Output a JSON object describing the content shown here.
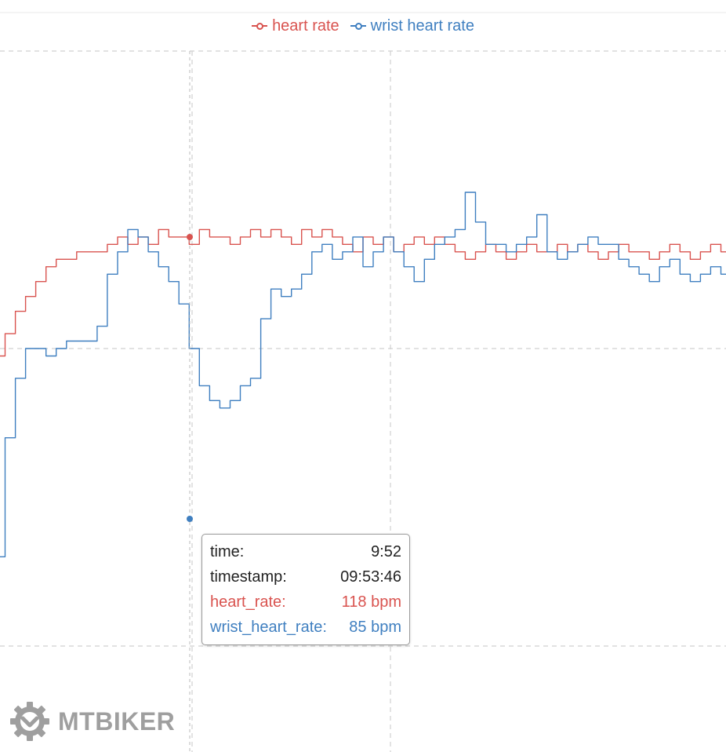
{
  "chart_data": {
    "type": "line",
    "title": "",
    "xlabel": "",
    "ylabel": "",
    "grid": true,
    "legend_position": "top-center",
    "series": [
      {
        "name": "heart rate",
        "color": "#d9534f",
        "points": [
          [
            0,
            99
          ],
          [
            3,
            102
          ],
          [
            6,
            105
          ],
          [
            9,
            107
          ],
          [
            12,
            109
          ],
          [
            15,
            111
          ],
          [
            18,
            112
          ],
          [
            21,
            112
          ],
          [
            24,
            113
          ],
          [
            27,
            113
          ],
          [
            30,
            113
          ],
          [
            33,
            114
          ],
          [
            36,
            115
          ],
          [
            39,
            114
          ],
          [
            42,
            115
          ],
          [
            45,
            114
          ],
          [
            48,
            116
          ],
          [
            51,
            115
          ],
          [
            54,
            115
          ],
          [
            57,
            114
          ],
          [
            60,
            116
          ],
          [
            63,
            115
          ],
          [
            66,
            115
          ],
          [
            69,
            114
          ],
          [
            72,
            115
          ],
          [
            75,
            116
          ],
          [
            78,
            115
          ],
          [
            81,
            116
          ],
          [
            84,
            115
          ],
          [
            87,
            114
          ],
          [
            90,
            116
          ],
          [
            93,
            115
          ],
          [
            96,
            116
          ],
          [
            99,
            115
          ],
          [
            102,
            114
          ],
          [
            105,
            113
          ],
          [
            108,
            115
          ],
          [
            111,
            114
          ],
          [
            114,
            115
          ],
          [
            117,
            113
          ],
          [
            120,
            114
          ],
          [
            123,
            115
          ],
          [
            126,
            114
          ],
          [
            129,
            115
          ],
          [
            132,
            114
          ],
          [
            135,
            113
          ],
          [
            138,
            112
          ],
          [
            141,
            113
          ],
          [
            144,
            114
          ],
          [
            147,
            113
          ],
          [
            150,
            112
          ],
          [
            153,
            113
          ],
          [
            156,
            114
          ],
          [
            159,
            113
          ],
          [
            162,
            113
          ],
          [
            165,
            114
          ],
          [
            168,
            113
          ],
          [
            171,
            114
          ],
          [
            174,
            113
          ],
          [
            177,
            112
          ],
          [
            180,
            113
          ],
          [
            183,
            114
          ],
          [
            186,
            113
          ],
          [
            189,
            113
          ],
          [
            192,
            112
          ],
          [
            195,
            113
          ],
          [
            198,
            114
          ],
          [
            201,
            113
          ],
          [
            204,
            112
          ],
          [
            207,
            113
          ],
          [
            210,
            114
          ],
          [
            213,
            113
          ]
        ]
      },
      {
        "name": "wrist heart rate",
        "color": "#3f7fc0",
        "points": [
          [
            0,
            72
          ],
          [
            3,
            88
          ],
          [
            6,
            96
          ],
          [
            9,
            100
          ],
          [
            12,
            100
          ],
          [
            15,
            99
          ],
          [
            18,
            100
          ],
          [
            21,
            101
          ],
          [
            24,
            101
          ],
          [
            27,
            101
          ],
          [
            30,
            103
          ],
          [
            33,
            110
          ],
          [
            36,
            113
          ],
          [
            39,
            116
          ],
          [
            42,
            115
          ],
          [
            45,
            113
          ],
          [
            48,
            111
          ],
          [
            51,
            109
          ],
          [
            54,
            106
          ],
          [
            57,
            100
          ],
          [
            60,
            95
          ],
          [
            63,
            93
          ],
          [
            66,
            92
          ],
          [
            69,
            93
          ],
          [
            72,
            95
          ],
          [
            75,
            96
          ],
          [
            78,
            104
          ],
          [
            81,
            108
          ],
          [
            84,
            107
          ],
          [
            87,
            108
          ],
          [
            90,
            110
          ],
          [
            93,
            113
          ],
          [
            96,
            114
          ],
          [
            99,
            112
          ],
          [
            102,
            113
          ],
          [
            105,
            115
          ],
          [
            108,
            111
          ],
          [
            111,
            113
          ],
          [
            114,
            115
          ],
          [
            117,
            113
          ],
          [
            120,
            111
          ],
          [
            123,
            109
          ],
          [
            126,
            112
          ],
          [
            129,
            114
          ],
          [
            132,
            115
          ],
          [
            135,
            116
          ],
          [
            138,
            121
          ],
          [
            141,
            117
          ],
          [
            144,
            114
          ],
          [
            147,
            114
          ],
          [
            150,
            113
          ],
          [
            153,
            114
          ],
          [
            156,
            115
          ],
          [
            159,
            118
          ],
          [
            162,
            113
          ],
          [
            165,
            112
          ],
          [
            168,
            113
          ],
          [
            171,
            114
          ],
          [
            174,
            115
          ],
          [
            177,
            114
          ],
          [
            180,
            114
          ],
          [
            183,
            112
          ],
          [
            186,
            111
          ],
          [
            189,
            110
          ],
          [
            192,
            109
          ],
          [
            195,
            111
          ],
          [
            198,
            112
          ],
          [
            201,
            110
          ],
          [
            204,
            109
          ],
          [
            207,
            110
          ],
          [
            210,
            111
          ],
          [
            213,
            110
          ]
        ]
      }
    ]
  },
  "tooltip": {
    "rows": [
      {
        "label": "time:",
        "value": "9:52",
        "color": "#222222"
      },
      {
        "label": "timestamp:",
        "value": "09:53:46",
        "color": "#222222"
      },
      {
        "label": "heart_rate:",
        "value": "118 bpm",
        "color": "#d9534f"
      },
      {
        "label": "wrist_heart_rate:",
        "value": "85 bpm",
        "color": "#3f7fc0"
      }
    ]
  },
  "watermark": {
    "text": "MTBIKER",
    "icon": "gear-logo-icon"
  }
}
